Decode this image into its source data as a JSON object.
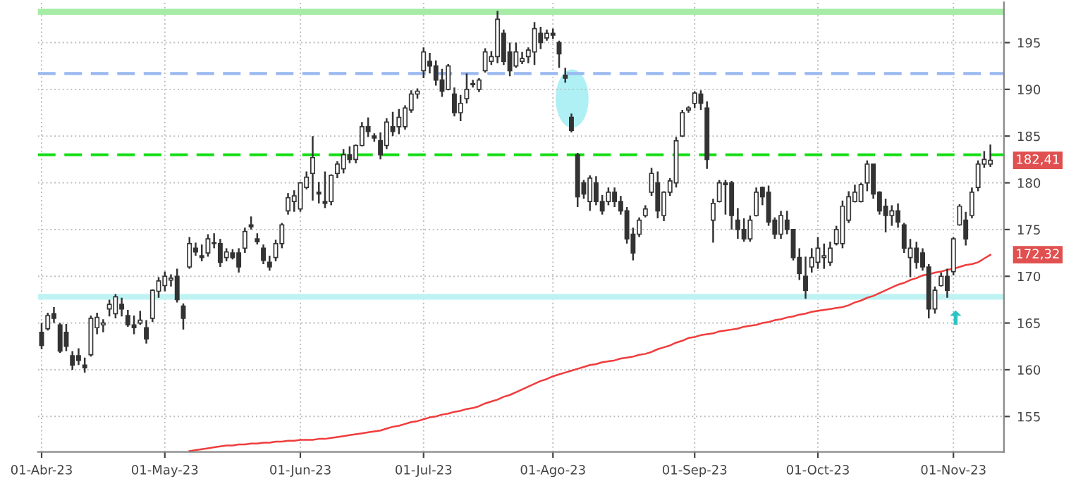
{
  "chart_data": {
    "type": "candlestick",
    "color": "#333333",
    "categories": [
      "01-Abr-23",
      null,
      null,
      null,
      null,
      null,
      null,
      null,
      null,
      null,
      null,
      null,
      null,
      null,
      null,
      null,
      null,
      null,
      null,
      null,
      "01-May-23",
      null,
      null,
      null,
      null,
      null,
      null,
      null,
      null,
      null,
      null,
      null,
      null,
      null,
      null,
      null,
      null,
      null,
      null,
      null,
      null,
      null,
      "01-Jun-23",
      null,
      null,
      null,
      null,
      null,
      null,
      null,
      null,
      null,
      null,
      null,
      null,
      null,
      null,
      null,
      null,
      null,
      null,
      null,
      "01-Jul-23",
      null,
      null,
      null,
      null,
      null,
      null,
      null,
      null,
      null,
      null,
      null,
      null,
      null,
      null,
      null,
      null,
      null,
      null,
      null,
      null,
      "01-Ago-23",
      null,
      null,
      null,
      null,
      null,
      null,
      null,
      null,
      null,
      null,
      null,
      null,
      null,
      null,
      null,
      null,
      null,
      null,
      null,
      null,
      null,
      null,
      "01-Sep-23",
      null,
      null,
      null,
      null,
      null,
      null,
      null,
      null,
      null,
      null,
      null,
      null,
      null,
      null,
      null,
      null,
      null,
      null,
      null,
      "01-Oct-23",
      null,
      null,
      null,
      null,
      null,
      null,
      null,
      null,
      null,
      null,
      null,
      null,
      null,
      null,
      null,
      null,
      null,
      null,
      null,
      null,
      null,
      "01-Nov-23",
      null,
      null,
      null,
      null,
      null,
      null
    ],
    "ohlc": [
      [
        164,
        165.0,
        162.2,
        162.6
      ],
      [
        164.4,
        166.1,
        164.2,
        165.8
      ],
      [
        166,
        166.7,
        165.0,
        165.5
      ],
      [
        164.8,
        165.0,
        161.8,
        162.0
      ],
      [
        164,
        164.9,
        162.0,
        162.5
      ],
      [
        161.5,
        162.0,
        160.0,
        160.5
      ],
      [
        161.5,
        162.3,
        160.5,
        161
      ],
      [
        160.5,
        161.3,
        159.7,
        160.2
      ],
      [
        161.6,
        165.8,
        161.4,
        165.5
      ],
      [
        164.5,
        166.1,
        163.8,
        165.6
      ],
      [
        164.8,
        165.4,
        164.0,
        165
      ],
      [
        166.5,
        167.5,
        165.7,
        167
      ],
      [
        166,
        168.1,
        165.5,
        167.8
      ],
      [
        167,
        167.7,
        165.7,
        166.5
      ],
      [
        165.8,
        166.4,
        164.6,
        164.8
      ],
      [
        164.8,
        165.8,
        163.8,
        164.5
      ],
      [
        165,
        166.3,
        164.8,
        165.3
      ],
      [
        164.5,
        165.3,
        162.8,
        163.3
      ],
      [
        165.5,
        168.6,
        165.1,
        168.5
      ],
      [
        168.4,
        169.9,
        167.7,
        169.5
      ],
      [
        169,
        170.5,
        168.4,
        170
      ],
      [
        169.6,
        170.2,
        168.9,
        169.8
      ],
      [
        170,
        170.8,
        167.2,
        167.5
      ],
      [
        166.8,
        167.1,
        164.3,
        165.5
      ],
      [
        171,
        174.2,
        170.8,
        173.5
      ],
      [
        173,
        173.6,
        172.2,
        172.6
      ],
      [
        172.2,
        173.4,
        171.6,
        172
      ],
      [
        172.5,
        174.5,
        172.1,
        174
      ],
      [
        173.5,
        174.6,
        173.0,
        173.6
      ],
      [
        173.5,
        174.0,
        171.0,
        171.5
      ],
      [
        172,
        173.0,
        171.6,
        172.6
      ],
      [
        172.5,
        172.9,
        171.8,
        172
      ],
      [
        172.5,
        173.0,
        170.4,
        171
      ],
      [
        173,
        175.2,
        172.5,
        174.8
      ],
      [
        175.5,
        176.4,
        175.0,
        175.3
      ],
      [
        174,
        174.6,
        173.4,
        173.7
      ],
      [
        173,
        173.4,
        171.3,
        171.7
      ],
      [
        171.5,
        172.2,
        170.6,
        171
      ],
      [
        172,
        173.9,
        171.6,
        173.5
      ],
      [
        173.5,
        175.7,
        173.0,
        175.5
      ],
      [
        177,
        178.9,
        176.6,
        178.4
      ],
      [
        178,
        179.2,
        176.9,
        178.6
      ],
      [
        177.2,
        180.1,
        176.9,
        180
      ],
      [
        179.5,
        181.2,
        179.3,
        180.6
      ],
      [
        181,
        185.0,
        178.1,
        182.7
      ],
      [
        179,
        180.1,
        177.8,
        178.8
      ],
      [
        178,
        181.2,
        177.3,
        177.8
      ],
      [
        178,
        180.9,
        177.6,
        180.8
      ],
      [
        181,
        182.3,
        180.5,
        182
      ],
      [
        181.5,
        183.6,
        181.0,
        183
      ],
      [
        183,
        183.9,
        182.1,
        182.5
      ],
      [
        182.5,
        184.1,
        182.1,
        184
      ],
      [
        184,
        186.5,
        183.9,
        186
      ],
      [
        186,
        187.0,
        184.9,
        185.5
      ],
      [
        185,
        185.3,
        184.4,
        184.8
      ],
      [
        184.5,
        185.4,
        182.5,
        183
      ],
      [
        184,
        186.9,
        183.6,
        186.5
      ],
      [
        186,
        187.6,
        185.0,
        185.5
      ],
      [
        186,
        187.9,
        185.2,
        187
      ],
      [
        186,
        188.3,
        185.7,
        188
      ],
      [
        187.8,
        189.9,
        187.5,
        189.5
      ],
      [
        189.5,
        190.1,
        189.0,
        189.8
      ],
      [
        192,
        194.5,
        191.2,
        194
      ],
      [
        193,
        193.9,
        191.7,
        192.5
      ],
      [
        192.5,
        193.1,
        190.4,
        191
      ],
      [
        191,
        192.2,
        189.2,
        189.8
      ],
      [
        190,
        192.7,
        189.9,
        192.5
      ],
      [
        189.5,
        190.2,
        187.1,
        187.5
      ],
      [
        187.5,
        189.4,
        186.6,
        188.5
      ],
      [
        189,
        191.7,
        188.5,
        190
      ],
      [
        190.5,
        191.0,
        190.2,
        190.6
      ],
      [
        190,
        191.2,
        189.7,
        191
      ],
      [
        192,
        194.4,
        191.8,
        194
      ],
      [
        193,
        194.1,
        192.6,
        193.5
      ],
      [
        193.5,
        198.4,
        192.8,
        197.5
      ],
      [
        196,
        196.4,
        192.6,
        193
      ],
      [
        194,
        195.0,
        191.4,
        192
      ],
      [
        192.5,
        195.0,
        192.3,
        194
      ],
      [
        193,
        194.0,
        192.7,
        193.3
      ],
      [
        193.5,
        194.5,
        192.8,
        194.2
      ],
      [
        194,
        197.2,
        192.6,
        196.5
      ],
      [
        196,
        196.7,
        194.3,
        195
      ],
      [
        195.5,
        196.4,
        195.2,
        196
      ],
      [
        196,
        196.5,
        195.4,
        195.8
      ],
      [
        195,
        195.2,
        192.3,
        193.8
      ],
      [
        191.5,
        192.3,
        190.7,
        191.2
      ],
      [
        187,
        187.4,
        185.4,
        185.6
      ],
      [
        183,
        183.2,
        177.4,
        178.5
      ],
      [
        180,
        180.3,
        178.3,
        178.8
      ],
      [
        178,
        180.8,
        177.0,
        180.5
      ],
      [
        180,
        180.7,
        177.6,
        178
      ],
      [
        178,
        178.7,
        176.6,
        177
      ],
      [
        178,
        179.5,
        177.6,
        179
      ],
      [
        179,
        179.5,
        177.4,
        178
      ],
      [
        178,
        178.6,
        176.6,
        177
      ],
      [
        177,
        177.4,
        173.5,
        174
      ],
      [
        174.5,
        175.2,
        171.7,
        172.5
      ],
      [
        174.5,
        176.3,
        174.2,
        176
      ],
      [
        176.5,
        177.6,
        176.3,
        177.2
      ],
      [
        179,
        181.6,
        178.6,
        181
      ],
      [
        180,
        181.2,
        176.2,
        177
      ],
      [
        176.5,
        179.1,
        175.9,
        179
      ],
      [
        179,
        180.5,
        178.6,
        180.2
      ],
      [
        180,
        184.9,
        179.5,
        184.5
      ],
      [
        185,
        187.8,
        184.9,
        187.5
      ],
      [
        187.8,
        188.2,
        187.5,
        188
      ],
      [
        188.5,
        189.8,
        188.0,
        189.6
      ],
      [
        189.5,
        189.9,
        187.8,
        188.5
      ],
      [
        188,
        188.7,
        181.5,
        182.5
      ],
      [
        176,
        178.3,
        173.6,
        177.8
      ],
      [
        178,
        180.3,
        177.9,
        180
      ],
      [
        180,
        180.3,
        176.6,
        179.8
      ],
      [
        180,
        180.2,
        175.0,
        176.5
      ],
      [
        176,
        177.3,
        174.0,
        175
      ],
      [
        175,
        176.2,
        173.7,
        174
      ],
      [
        174,
        176.5,
        173.7,
        176
      ],
      [
        176.5,
        179.5,
        176.4,
        179
      ],
      [
        179.5,
        179.6,
        177.6,
        178.5
      ],
      [
        179,
        179.7,
        175.4,
        175.8
      ],
      [
        176,
        176.3,
        174.0,
        174.5
      ],
      [
        174.5,
        177.0,
        174.0,
        176.5
      ],
      [
        176,
        177.0,
        174.5,
        175
      ],
      [
        175,
        175.0,
        171.7,
        172
      ],
      [
        172,
        173.0,
        169.6,
        170.3
      ],
      [
        170,
        172.1,
        167.6,
        168.5
      ],
      [
        171,
        173.0,
        170.4,
        172
      ],
      [
        171.5,
        174.2,
        170.8,
        173
      ],
      [
        172,
        173.5,
        170.8,
        172.2
      ],
      [
        171.5,
        173.7,
        171.1,
        173
      ],
      [
        173.5,
        175.4,
        173.3,
        175
      ],
      [
        173.5,
        178.1,
        173.0,
        177.5
      ],
      [
        176,
        179.1,
        175.7,
        178.5
      ],
      [
        178,
        179.8,
        177.9,
        179
      ],
      [
        178,
        180.0,
        177.9,
        179.8
      ],
      [
        180,
        182.4,
        179.1,
        182
      ],
      [
        182,
        182.0,
        178.3,
        178.8
      ],
      [
        179,
        179.1,
        176.6,
        177
      ],
      [
        177.5,
        178.3,
        174.7,
        176.5
      ],
      [
        176.5,
        177.6,
        175.4,
        177
      ],
      [
        177,
        177.8,
        175.2,
        175.8
      ],
      [
        175.5,
        175.7,
        172.5,
        173
      ],
      [
        172,
        174.0,
        169.9,
        173
      ],
      [
        173,
        173.7,
        170.8,
        171.5
      ],
      [
        172.5,
        173.0,
        170.6,
        171
      ],
      [
        171,
        171.3,
        165.5,
        166.5
      ],
      [
        166.5,
        168.9,
        166.0,
        168.5
      ],
      [
        169,
        170.4,
        168.9,
        170
      ],
      [
        170,
        170.8,
        167.7,
        168.5
      ],
      [
        170.5,
        174.2,
        170.1,
        174
      ],
      [
        175.5,
        177.7,
        175.4,
        177.5
      ],
      [
        176,
        176.9,
        173.3,
        174
      ],
      [
        176.5,
        179.5,
        176.2,
        179
      ],
      [
        179.5,
        182.4,
        179.1,
        182
      ],
      [
        182,
        183.4,
        181.6,
        182.5
      ],
      [
        182,
        184.1,
        181.7,
        182.41
      ]
    ],
    "series": [
      {
        "type": "line",
        "color": "#f03c3c",
        "values": [
          null,
          null,
          null,
          null,
          null,
          null,
          null,
          null,
          null,
          null,
          null,
          null,
          null,
          null,
          null,
          null,
          null,
          null,
          null,
          null,
          null,
          null,
          null,
          null,
          151.3,
          151.4,
          151.5,
          151.6,
          151.7,
          151.8,
          151.9,
          151.9,
          152.0,
          152.0,
          152.1,
          152.1,
          152.2,
          152.2,
          152.3,
          152.3,
          152.4,
          152.4,
          152.5,
          152.5,
          152.5,
          152.6,
          152.6,
          152.7,
          152.8,
          152.9,
          153.0,
          153.1,
          153.2,
          153.3,
          153.4,
          153.5,
          153.7,
          153.9,
          154.0,
          154.2,
          154.4,
          154.5,
          154.7,
          154.9,
          155.0,
          155.2,
          155.3,
          155.5,
          155.6,
          155.8,
          155.9,
          156.1,
          156.4,
          156.6,
          156.8,
          157.1,
          157.3,
          157.6,
          157.9,
          158.2,
          158.5,
          158.8,
          159.0,
          159.3,
          159.5,
          159.7,
          159.9,
          160.1,
          160.3,
          160.5,
          160.6,
          160.8,
          160.9,
          161.0,
          161.2,
          161.3,
          161.4,
          161.6,
          161.7,
          161.9,
          162.2,
          162.4,
          162.6,
          162.9,
          163.1,
          163.4,
          163.5,
          163.7,
          163.8,
          163.9,
          164.1,
          164.2,
          164.3,
          164.4,
          164.6,
          164.7,
          164.8,
          165.0,
          165.1,
          165.3,
          165.4,
          165.6,
          165.7,
          165.9,
          166.0,
          166.2,
          166.3,
          166.4,
          166.5,
          166.6,
          166.7,
          166.9,
          167.2,
          167.4,
          167.7,
          167.9,
          168.2,
          168.5,
          168.8,
          169.1,
          169.3,
          169.6,
          169.8,
          170.1,
          170.2,
          170.4,
          170.5,
          170.7,
          170.8,
          171.0,
          171.2,
          171.3,
          171.5,
          171.9,
          172.3
        ]
      }
    ],
    "ylim": [
      151.2,
      199.3
    ],
    "yticks": [
      155,
      160,
      165,
      170,
      175,
      180,
      185,
      190,
      195
    ],
    "grid": true,
    "ref_lines": [
      {
        "axis": "y",
        "value": 198.3,
        "color": "#a6eca6",
        "line_style": "solid"
      },
      {
        "axis": "y",
        "value": 191.7,
        "color": "#9ab8f0",
        "line_style": "dashed"
      },
      {
        "axis": "y",
        "value": 183.0,
        "color": "#11dd11",
        "line_style": "dashed"
      },
      {
        "axis": "y",
        "value": 167.8,
        "color": "#bff3f3",
        "line_style": "solid"
      }
    ],
    "annotations": [
      "182,41",
      "172,32"
    ]
  }
}
